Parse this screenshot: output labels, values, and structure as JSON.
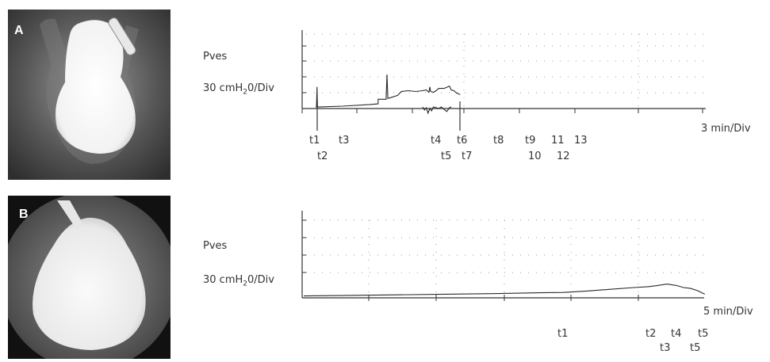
{
  "chart_data": [
    {
      "panel": "A",
      "type": "line",
      "pressure_label": "Pves",
      "scale_label_parts": [
        "30 cmH",
        "2",
        "0/Div"
      ],
      "time_scale_label": "3 min/Div",
      "events_row1": [
        "t1",
        "t3",
        "t4",
        "t6",
        "t8",
        "t9",
        "11",
        "13"
      ],
      "events_row2": [
        "t2",
        "t5",
        "t7",
        "10",
        "12"
      ],
      "series": [
        {
          "values": [
            [
              0,
              0
            ],
            [
              0.05,
              0
            ],
            [
              0.08,
              1.3
            ],
            [
              0.1,
              0
            ],
            [
              1.5,
              0.05
            ],
            [
              3,
              0.15
            ],
            [
              3.5,
              0.2
            ],
            [
              3.5,
              0.5
            ],
            [
              3.95,
              0.5
            ],
            [
              4,
              2.1
            ],
            [
              4.05,
              0.55
            ],
            [
              4.2,
              0.6
            ],
            [
              4.6,
              0.75
            ],
            [
              4.8,
              1.0
            ],
            [
              5.2,
              1.05
            ],
            [
              5.6,
              1.0
            ],
            [
              6,
              1.05
            ],
            [
              6.2,
              1.1
            ],
            [
              6.35,
              0.95
            ],
            [
              6.4,
              1.3
            ],
            [
              6.45,
              1.0
            ],
            [
              6.6,
              0.95
            ],
            [
              6.75,
              1.05
            ],
            [
              6.9,
              1.2
            ],
            [
              7.2,
              1.2
            ],
            [
              7.4,
              1.3
            ],
            [
              7.5,
              1.35
            ],
            [
              7.6,
              1.1
            ],
            [
              7.75,
              1.05
            ],
            [
              7.9,
              0.9
            ],
            [
              8.1,
              0.8
            ]
          ]
        },
        {
          "values": [
            [
              6.0,
              0
            ],
            [
              6.1,
              -0.2
            ],
            [
              6.2,
              -0.05
            ],
            [
              6.3,
              -0.4
            ],
            [
              6.4,
              -0.1
            ],
            [
              6.5,
              -0.25
            ],
            [
              6.6,
              0
            ],
            [
              6.9,
              -0.1
            ],
            [
              7.05,
              0
            ],
            [
              7.2,
              -0.15
            ],
            [
              7.35,
              -0.3
            ],
            [
              7.5,
              -0.05
            ],
            [
              7.6,
              0
            ]
          ]
        }
      ]
    },
    {
      "panel": "B",
      "type": "line",
      "pressure_label": "Pves",
      "scale_label_parts": [
        "30 cmH",
        "2",
        "0/Div"
      ],
      "time_scale_label": "5 min/Div",
      "events_row1": [
        "t1",
        "t2",
        "t4",
        "t5"
      ],
      "events_row2": [
        "t3",
        "t5"
      ],
      "series": [
        {
          "values": [
            [
              0,
              0.02
            ],
            [
              1,
              0.05
            ],
            [
              2,
              0.08
            ],
            [
              3,
              0.12
            ],
            [
              4,
              0.15
            ],
            [
              5,
              0.2
            ],
            [
              5.5,
              0.22
            ],
            [
              6,
              0.3
            ],
            [
              6.5,
              0.4
            ],
            [
              7,
              0.5
            ],
            [
              7.3,
              0.55
            ],
            [
              7.5,
              0.62
            ],
            [
              7.7,
              0.7
            ],
            [
              7.9,
              0.62
            ],
            [
              8.05,
              0.5
            ],
            [
              8.2,
              0.45
            ],
            [
              8.35,
              0.32
            ],
            [
              8.5,
              0.12
            ]
          ]
        }
      ]
    }
  ]
}
